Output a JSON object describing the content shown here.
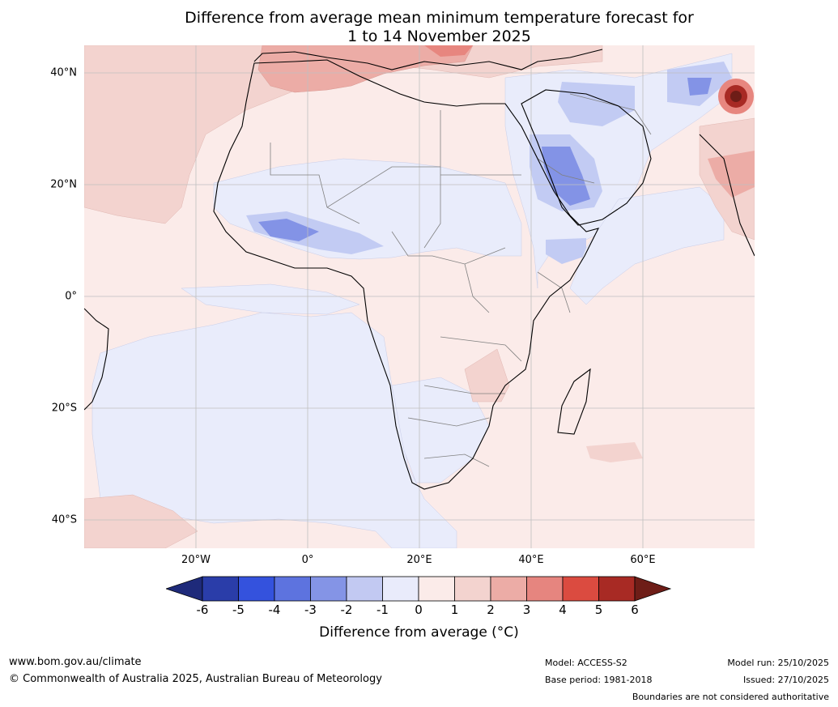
{
  "title": {
    "line1": "Difference from average mean minimum temperature forecast for",
    "line2": "1 to 14 November 2025"
  },
  "map": {
    "lat_labels": [
      "40°N",
      "20°N",
      "0°",
      "20°S",
      "40°S"
    ],
    "lon_labels": [
      "20°W",
      "0°",
      "20°E",
      "40°E",
      "60°E"
    ],
    "colors": {
      "ocean_default": "#fbebe9",
      "cool_1": "#e9ecfb",
      "cool_2": "#c2cbf3",
      "cool_3": "#8393e6",
      "warm_2": "#f3d3cf",
      "warm_3": "#ecaca6",
      "warm_4": "#e7867f",
      "warm_6": "#a82a24",
      "warm_7": "#6e1d17",
      "coast": "#000000",
      "border": "#808080",
      "grid": "#bfbfbf"
    }
  },
  "colorbar": {
    "title": "Difference from average (°C)",
    "tick_labels": [
      "-6",
      "-5",
      "-4",
      "-3",
      "-2",
      "-1",
      "0",
      "1",
      "2",
      "3",
      "4",
      "5",
      "6"
    ],
    "bin_colors": [
      "#2a3da9",
      "#3452dd",
      "#5d73df",
      "#8494e6",
      "#c2c9f2",
      "#e9ebfb",
      "#fbebe9",
      "#f3d3cf",
      "#ecaca6",
      "#e6857f",
      "#db4b40",
      "#a82a24"
    ],
    "under_color": "#1e2a7a",
    "over_color": "#6e1d17"
  },
  "footer": {
    "website": "www.bom.gov.au/climate",
    "copyright": "© Commonwealth of Australia 2025, Australian Bureau of Meteorology",
    "model": "Model: ACCESS-S2",
    "base_period": "Base period: 1981-2018",
    "model_run": "Model run: 25/10/2025",
    "issued": "Issued: 27/10/2025",
    "disclaimer": "Boundaries are not considered authoritative"
  }
}
